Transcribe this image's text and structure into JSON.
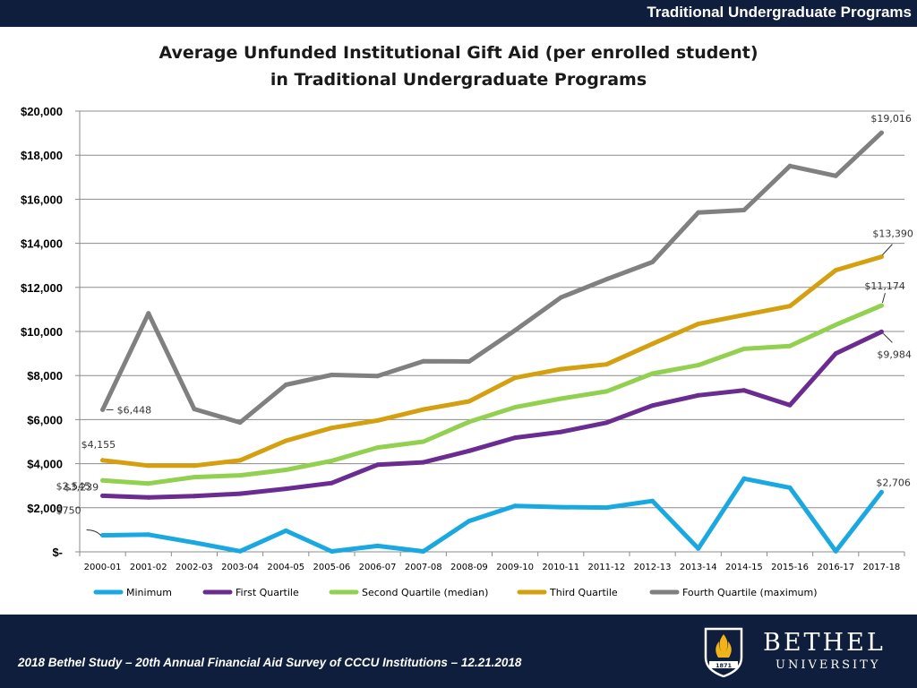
{
  "header": {
    "title": "Traditional Undergraduate Programs"
  },
  "footer": {
    "citation": "2018 Bethel Study – 20th Annual Financial Aid Survey of CCCU Institutions – 12.21.2018"
  },
  "logo": {
    "word1": "BETHEL",
    "word2": "UNIVERSITY",
    "year": "1871",
    "icon": "flame-shield-icon"
  },
  "chart_data": {
    "type": "line",
    "title_line1": "Average Unfunded Institutional Gift Aid (per enrolled student)",
    "title_line2": "in Traditional Undergraduate Programs",
    "xlabel": "",
    "ylabel": "",
    "ylim": [
      0,
      20000
    ],
    "yticks": [
      {
        "value": 0,
        "label": "$-"
      },
      {
        "value": 2000,
        "label": "$2,000"
      },
      {
        "value": 4000,
        "label": "$4,000"
      },
      {
        "value": 6000,
        "label": "$6,000"
      },
      {
        "value": 8000,
        "label": "$8,000"
      },
      {
        "value": 10000,
        "label": "$10,000"
      },
      {
        "value": 12000,
        "label": "$12,000"
      },
      {
        "value": 14000,
        "label": "$14,000"
      },
      {
        "value": 16000,
        "label": "$16,000"
      },
      {
        "value": 18000,
        "label": "$18,000"
      },
      {
        "value": 20000,
        "label": "$20,000"
      }
    ],
    "grid": true,
    "legend_position": "bottom",
    "categories": [
      "2000-01",
      "2001-02",
      "2002-03",
      "2003-04",
      "2004-05",
      "2005-06",
      "2006-07",
      "2007-08",
      "2008-09",
      "2009-10",
      "2010-11",
      "2011-12",
      "2012-13",
      "2013-14",
      "2014-15",
      "2015-16",
      "2016-17",
      "2017-18"
    ],
    "series": [
      {
        "name": "Minimum",
        "color": "#1aa8e0",
        "values": [
          750,
          780,
          420,
          30,
          960,
          20,
          270,
          20,
          1400,
          2080,
          2030,
          2010,
          2310,
          150,
          3320,
          2910,
          30,
          2706
        ],
        "labels": [
          {
            "index": 0,
            "text": "$750",
            "side": "start"
          },
          {
            "index": 17,
            "text": "$2,706",
            "side": "end"
          }
        ]
      },
      {
        "name": "First Quartile",
        "color": "#6a2c91",
        "values": [
          2545,
          2470,
          2530,
          2640,
          2860,
          3120,
          3950,
          4060,
          4580,
          5180,
          5440,
          5860,
          6640,
          7100,
          7330,
          6660,
          9000,
          9984
        ],
        "labels": [
          {
            "index": 0,
            "text": "$2,545",
            "side": "start"
          },
          {
            "index": 17,
            "text": "$9,984",
            "side": "end"
          }
        ]
      },
      {
        "name": "Second Quartile (median)",
        "color": "#92d050",
        "values": [
          3239,
          3100,
          3390,
          3470,
          3720,
          4130,
          4730,
          5000,
          5900,
          6560,
          6950,
          7280,
          8090,
          8470,
          9210,
          9340,
          10300,
          11174
        ],
        "labels": [
          {
            "index": 0,
            "text": "$3,239",
            "side": "start"
          },
          {
            "index": 17,
            "text": "$11,174",
            "side": "end"
          }
        ]
      },
      {
        "name": "Third Quartile",
        "color": "#d4a00f",
        "values": [
          4155,
          3910,
          3910,
          4150,
          5040,
          5620,
          5960,
          6460,
          6830,
          7900,
          8290,
          8510,
          9440,
          10340,
          10750,
          11150,
          12780,
          13390
        ],
        "labels": [
          {
            "index": 0,
            "text": "$4,155",
            "side": "start"
          },
          {
            "index": 17,
            "text": "$13,390",
            "side": "end"
          }
        ]
      },
      {
        "name": "Fourth Quartile (maximum)",
        "color": "#808080",
        "values": [
          6448,
          10820,
          6480,
          5870,
          7580,
          8030,
          7980,
          8650,
          8640,
          10050,
          11540,
          12370,
          13150,
          15400,
          15510,
          17510,
          17060,
          19016
        ],
        "labels": [
          {
            "index": 0,
            "text": "$6,448",
            "side": "start"
          },
          {
            "index": 17,
            "text": "$19,016",
            "side": "end"
          }
        ]
      }
    ]
  }
}
